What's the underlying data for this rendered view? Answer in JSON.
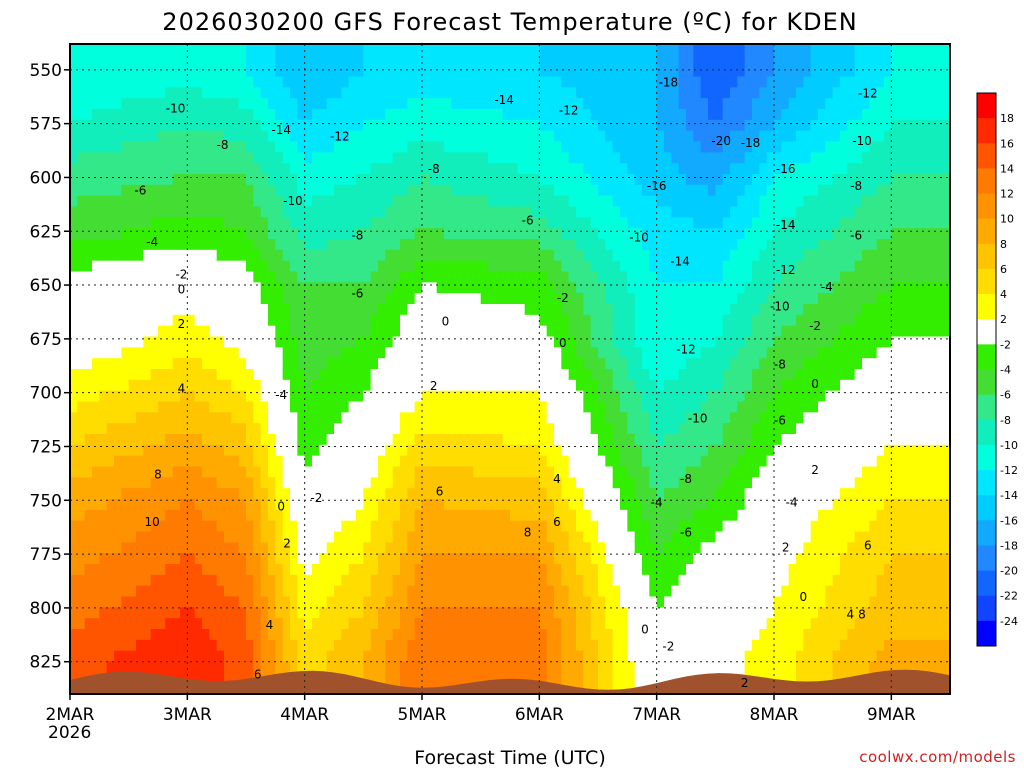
{
  "chart_data": {
    "type": "heatmap",
    "title": "2026030200 GFS Forecast Temperature (ºC) for KDEN",
    "xlabel": "Forecast Time (UTC)",
    "x_ticks": [
      "2MAR",
      "3MAR",
      "4MAR",
      "5MAR",
      "6MAR",
      "7MAR",
      "8MAR",
      "9MAR"
    ],
    "x_year": "2026",
    "x_range_days": [
      0,
      7.5
    ],
    "y_ticks": [
      550,
      575,
      600,
      625,
      650,
      675,
      700,
      725,
      750,
      775,
      800,
      825
    ],
    "y_range_hpa": [
      538,
      840
    ],
    "grid": true,
    "colorbar": {
      "placement": "right",
      "levels": [
        18,
        16,
        14,
        12,
        10,
        8,
        6,
        4,
        2,
        -2,
        -4,
        -6,
        -8,
        -10,
        -12,
        -14,
        -16,
        -18,
        -20,
        -22,
        -24
      ],
      "colors": [
        "#ff0000",
        "#ff2a00",
        "#ff5500",
        "#ff7a00",
        "#ff9200",
        "#ffaa00",
        "#ffc400",
        "#ffdd00",
        "#ffff00",
        "#ffffff",
        "#33ee00",
        "#44dd33",
        "#33e888",
        "#11eebb",
        "#00ffdd",
        "#00e6ff",
        "#00ccff",
        "#11aaff",
        "#2288ff",
        "#1166ff",
        "#1144ff",
        "#0000ff"
      ]
    },
    "series": [
      {
        "day": 0.0,
        "profile": [
          [
            550,
            -12
          ],
          [
            575,
            -10
          ],
          [
            600,
            -7
          ],
          [
            625,
            -5
          ],
          [
            650,
            -1
          ],
          [
            675,
            0
          ],
          [
            700,
            3
          ],
          [
            725,
            6
          ],
          [
            750,
            9
          ],
          [
            775,
            11
          ],
          [
            800,
            13
          ],
          [
            825,
            15
          ]
        ]
      },
      {
        "day": 1.0,
        "profile": [
          [
            550,
            -11
          ],
          [
            575,
            -8
          ],
          [
            600,
            -6
          ],
          [
            625,
            -3
          ],
          [
            650,
            1
          ],
          [
            675,
            3
          ],
          [
            700,
            6
          ],
          [
            725,
            9
          ],
          [
            750,
            12
          ],
          [
            775,
            14
          ],
          [
            800,
            16
          ],
          [
            825,
            18
          ]
        ]
      },
      {
        "day": 1.5,
        "profile": [
          [
            550,
            -12
          ],
          [
            575,
            -9
          ],
          [
            600,
            -6
          ],
          [
            625,
            -4
          ],
          [
            650,
            -1
          ],
          [
            675,
            1
          ],
          [
            700,
            4
          ],
          [
            725,
            7
          ],
          [
            750,
            10
          ],
          [
            775,
            12
          ],
          [
            800,
            14
          ],
          [
            825,
            15
          ]
        ]
      },
      {
        "day": 2.0,
        "profile": [
          [
            550,
            -16
          ],
          [
            575,
            -14
          ],
          [
            600,
            -11
          ],
          [
            625,
            -9
          ],
          [
            650,
            -6
          ],
          [
            675,
            -5
          ],
          [
            700,
            -4
          ],
          [
            725,
            -3
          ],
          [
            750,
            -1
          ],
          [
            775,
            1
          ],
          [
            800,
            3
          ],
          [
            825,
            5
          ]
        ]
      },
      {
        "day": 2.5,
        "profile": [
          [
            550,
            -14
          ],
          [
            575,
            -12
          ],
          [
            600,
            -10
          ],
          [
            625,
            -8
          ],
          [
            650,
            -6
          ],
          [
            675,
            -4
          ],
          [
            700,
            -2
          ],
          [
            725,
            0
          ],
          [
            750,
            2
          ],
          [
            775,
            4
          ],
          [
            800,
            6
          ],
          [
            825,
            8
          ]
        ]
      },
      {
        "day": 3.0,
        "profile": [
          [
            550,
            -13
          ],
          [
            575,
            -11
          ],
          [
            600,
            -8
          ],
          [
            625,
            -6
          ],
          [
            650,
            -2
          ],
          [
            675,
            0
          ],
          [
            700,
            2
          ],
          [
            725,
            5
          ],
          [
            750,
            8
          ],
          [
            775,
            10
          ],
          [
            800,
            12
          ],
          [
            825,
            14
          ]
        ]
      },
      {
        "day": 4.0,
        "profile": [
          [
            550,
            -14
          ],
          [
            575,
            -12
          ],
          [
            600,
            -10
          ],
          [
            625,
            -7
          ],
          [
            650,
            -3
          ],
          [
            675,
            -1
          ],
          [
            700,
            2
          ],
          [
            725,
            4
          ],
          [
            750,
            7
          ],
          [
            775,
            10
          ],
          [
            800,
            12
          ],
          [
            825,
            13
          ]
        ]
      },
      {
        "day": 5.0,
        "profile": [
          [
            550,
            -16
          ],
          [
            575,
            -16
          ],
          [
            600,
            -15
          ],
          [
            625,
            -13
          ],
          [
            650,
            -12
          ],
          [
            675,
            -12
          ],
          [
            700,
            -10
          ],
          [
            725,
            -8
          ],
          [
            750,
            -6
          ],
          [
            775,
            -4
          ],
          [
            800,
            -2
          ],
          [
            825,
            -1
          ]
        ]
      },
      {
        "day": 5.5,
        "profile": [
          [
            550,
            -22
          ],
          [
            575,
            -20
          ],
          [
            600,
            -17
          ],
          [
            625,
            -14
          ],
          [
            650,
            -12
          ],
          [
            675,
            -10
          ],
          [
            700,
            -8
          ],
          [
            725,
            -6
          ],
          [
            750,
            -4
          ],
          [
            775,
            -1
          ],
          [
            800,
            0
          ],
          [
            825,
            1
          ]
        ]
      },
      {
        "day": 6.0,
        "profile": [
          [
            550,
            -18
          ],
          [
            575,
            -16
          ],
          [
            600,
            -12
          ],
          [
            625,
            -10
          ],
          [
            650,
            -8
          ],
          [
            675,
            -6
          ],
          [
            700,
            -4
          ],
          [
            725,
            -2
          ],
          [
            750,
            0
          ],
          [
            775,
            1
          ],
          [
            800,
            2
          ],
          [
            825,
            3
          ]
        ]
      },
      {
        "day": 7.0,
        "profile": [
          [
            550,
            -12
          ],
          [
            575,
            -10
          ],
          [
            600,
            -8
          ],
          [
            625,
            -6
          ],
          [
            650,
            -4
          ],
          [
            675,
            -2
          ],
          [
            700,
            0
          ],
          [
            725,
            2
          ],
          [
            750,
            4
          ],
          [
            775,
            6
          ],
          [
            800,
            7
          ],
          [
            825,
            9
          ]
        ]
      }
    ],
    "contour_labels": [
      {
        "day": 0.9,
        "hpa": 568,
        "value": "-10"
      },
      {
        "day": 1.3,
        "hpa": 585,
        "value": "-8"
      },
      {
        "day": 0.6,
        "hpa": 606,
        "value": "-6"
      },
      {
        "day": 0.7,
        "hpa": 630,
        "value": "-4"
      },
      {
        "day": 0.95,
        "hpa": 645,
        "value": "-2"
      },
      {
        "day": 0.95,
        "hpa": 652,
        "value": "0"
      },
      {
        "day": 0.95,
        "hpa": 668,
        "value": "2"
      },
      {
        "day": 0.95,
        "hpa": 698,
        "value": "4"
      },
      {
        "day": 0.75,
        "hpa": 738,
        "value": "8"
      },
      {
        "day": 0.7,
        "hpa": 760,
        "value": "10"
      },
      {
        "day": 1.8,
        "hpa": 578,
        "value": "-14"
      },
      {
        "day": 2.3,
        "hpa": 581,
        "value": "-12"
      },
      {
        "day": 1.9,
        "hpa": 611,
        "value": "-10"
      },
      {
        "day": 2.45,
        "hpa": 627,
        "value": "-8"
      },
      {
        "day": 2.45,
        "hpa": 654,
        "value": "-6"
      },
      {
        "day": 1.8,
        "hpa": 701,
        "value": "-4"
      },
      {
        "day": 2.1,
        "hpa": 749,
        "value": "-2"
      },
      {
        "day": 1.8,
        "hpa": 753,
        "value": "0"
      },
      {
        "day": 1.85,
        "hpa": 770,
        "value": "2"
      },
      {
        "day": 1.7,
        "hpa": 808,
        "value": "4"
      },
      {
        "day": 1.6,
        "hpa": 831,
        "value": "6"
      },
      {
        "day": 3.2,
        "hpa": 667,
        "value": "0"
      },
      {
        "day": 3.1,
        "hpa": 697,
        "value": "2"
      },
      {
        "day": 3.15,
        "hpa": 746,
        "value": "6"
      },
      {
        "day": 3.1,
        "hpa": 596,
        "value": "-8"
      },
      {
        "day": 3.7,
        "hpa": 564,
        "value": "-14"
      },
      {
        "day": 4.25,
        "hpa": 569,
        "value": "-12"
      },
      {
        "day": 3.9,
        "hpa": 620,
        "value": "-6"
      },
      {
        "day": 4.2,
        "hpa": 656,
        "value": "-2"
      },
      {
        "day": 4.2,
        "hpa": 677,
        "value": "0"
      },
      {
        "day": 4.15,
        "hpa": 740,
        "value": "4"
      },
      {
        "day": 3.9,
        "hpa": 765,
        "value": "8"
      },
      {
        "day": 4.15,
        "hpa": 760,
        "value": "6"
      },
      {
        "day": 4.85,
        "hpa": 628,
        "value": "-10"
      },
      {
        "day": 5.1,
        "hpa": 556,
        "value": "-18"
      },
      {
        "day": 5.55,
        "hpa": 583,
        "value": "-20"
      },
      {
        "day": 5.8,
        "hpa": 584,
        "value": "-18"
      },
      {
        "day": 6.1,
        "hpa": 596,
        "value": "-16"
      },
      {
        "day": 5.0,
        "hpa": 604,
        "value": "-16"
      },
      {
        "day": 5.2,
        "hpa": 639,
        "value": "-14"
      },
      {
        "day": 6.1,
        "hpa": 622,
        "value": "-14"
      },
      {
        "day": 6.1,
        "hpa": 643,
        "value": "-12"
      },
      {
        "day": 5.25,
        "hpa": 680,
        "value": "-12"
      },
      {
        "day": 6.05,
        "hpa": 660,
        "value": "-10"
      },
      {
        "day": 5.35,
        "hpa": 712,
        "value": "-10"
      },
      {
        "day": 6.05,
        "hpa": 687,
        "value": "-8"
      },
      {
        "day": 5.25,
        "hpa": 740,
        "value": "-8"
      },
      {
        "day": 6.05,
        "hpa": 713,
        "value": "-6"
      },
      {
        "day": 5.25,
        "hpa": 765,
        "value": "-6"
      },
      {
        "day": 5.0,
        "hpa": 751,
        "value": "-4"
      },
      {
        "day": 6.15,
        "hpa": 751,
        "value": "-4"
      },
      {
        "day": 4.9,
        "hpa": 810,
        "value": "0"
      },
      {
        "day": 5.1,
        "hpa": 818,
        "value": "-2"
      },
      {
        "day": 6.25,
        "hpa": 795,
        "value": "0"
      },
      {
        "day": 6.1,
        "hpa": 772,
        "value": "2"
      },
      {
        "day": 5.75,
        "hpa": 835,
        "value": "2"
      },
      {
        "day": 6.35,
        "hpa": 669,
        "value": "-2"
      },
      {
        "day": 6.35,
        "hpa": 696,
        "value": "0"
      },
      {
        "day": 6.35,
        "hpa": 736,
        "value": "2"
      },
      {
        "day": 6.45,
        "hpa": 651,
        "value": "-4"
      },
      {
        "day": 6.7,
        "hpa": 627,
        "value": "-6"
      },
      {
        "day": 6.7,
        "hpa": 604,
        "value": "-8"
      },
      {
        "day": 6.75,
        "hpa": 583,
        "value": "-10"
      },
      {
        "day": 6.8,
        "hpa": 561,
        "value": "-12"
      },
      {
        "day": 6.8,
        "hpa": 771,
        "value": "6"
      },
      {
        "day": 6.75,
        "hpa": 803,
        "value": "8"
      },
      {
        "day": 6.65,
        "hpa": 803,
        "value": "4"
      }
    ],
    "annotations": [
      "coolwx.com/models"
    ]
  }
}
